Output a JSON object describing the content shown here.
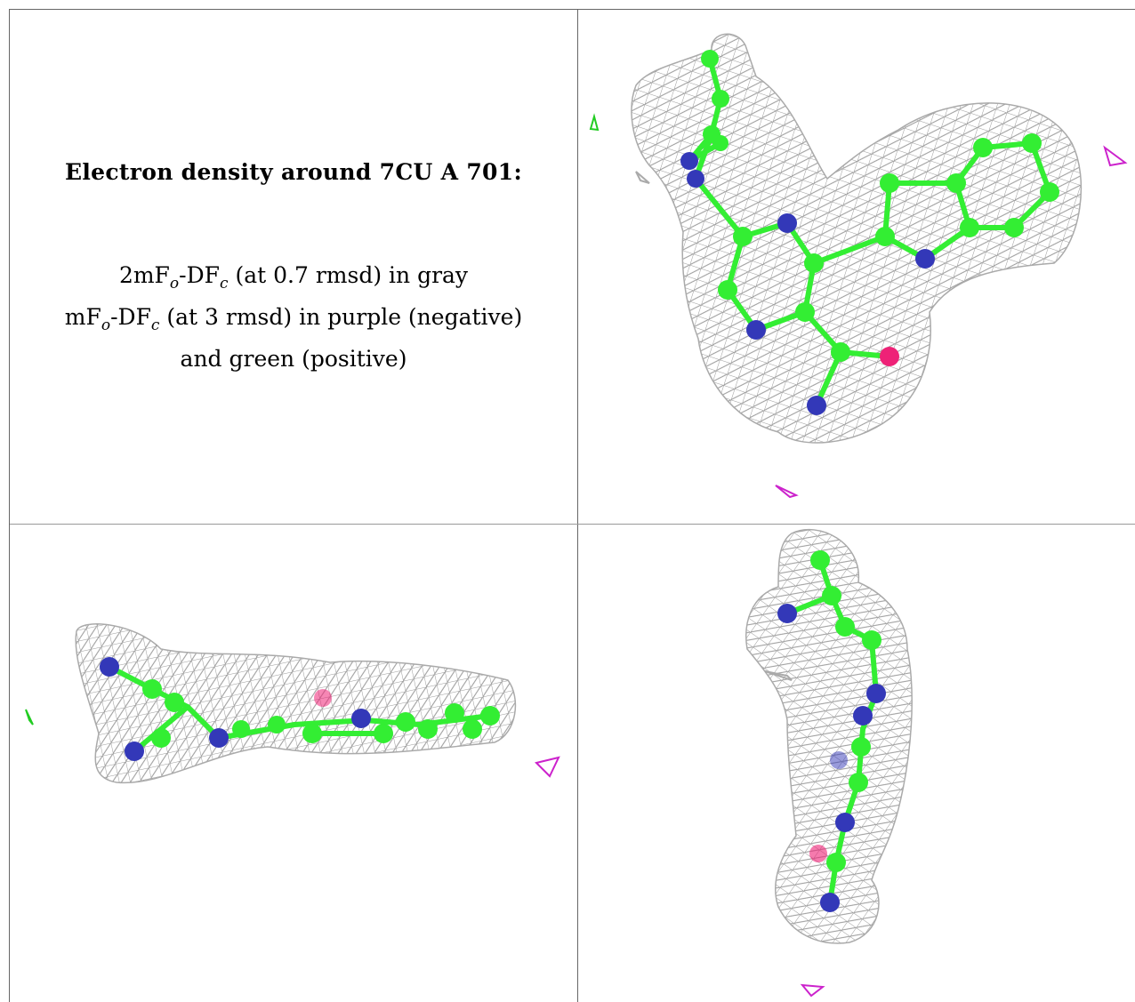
{
  "title": "Electron density around 7CU A 701:",
  "lines": {
    "line1": {
      "prefix": "2mF",
      "sub1": "o",
      "mid": "-DF",
      "sub2": "c",
      "suffix": " (at 0.7 rmsd) in gray"
    },
    "line2": {
      "prefix": "mF",
      "sub1": "o",
      "mid": "-DF",
      "sub2": "c",
      "suffix": " (at 3 rmsd) in purple (negative)"
    },
    "line3": "and green (positive)"
  },
  "colors": {
    "mesh": "#9a9a9a",
    "carbon": "#33ee33",
    "nitrogen": "#3338b8",
    "oxygen": "#ee2277",
    "negative": "#cc22cc",
    "positive": "#22cc22",
    "border": "#666666"
  }
}
